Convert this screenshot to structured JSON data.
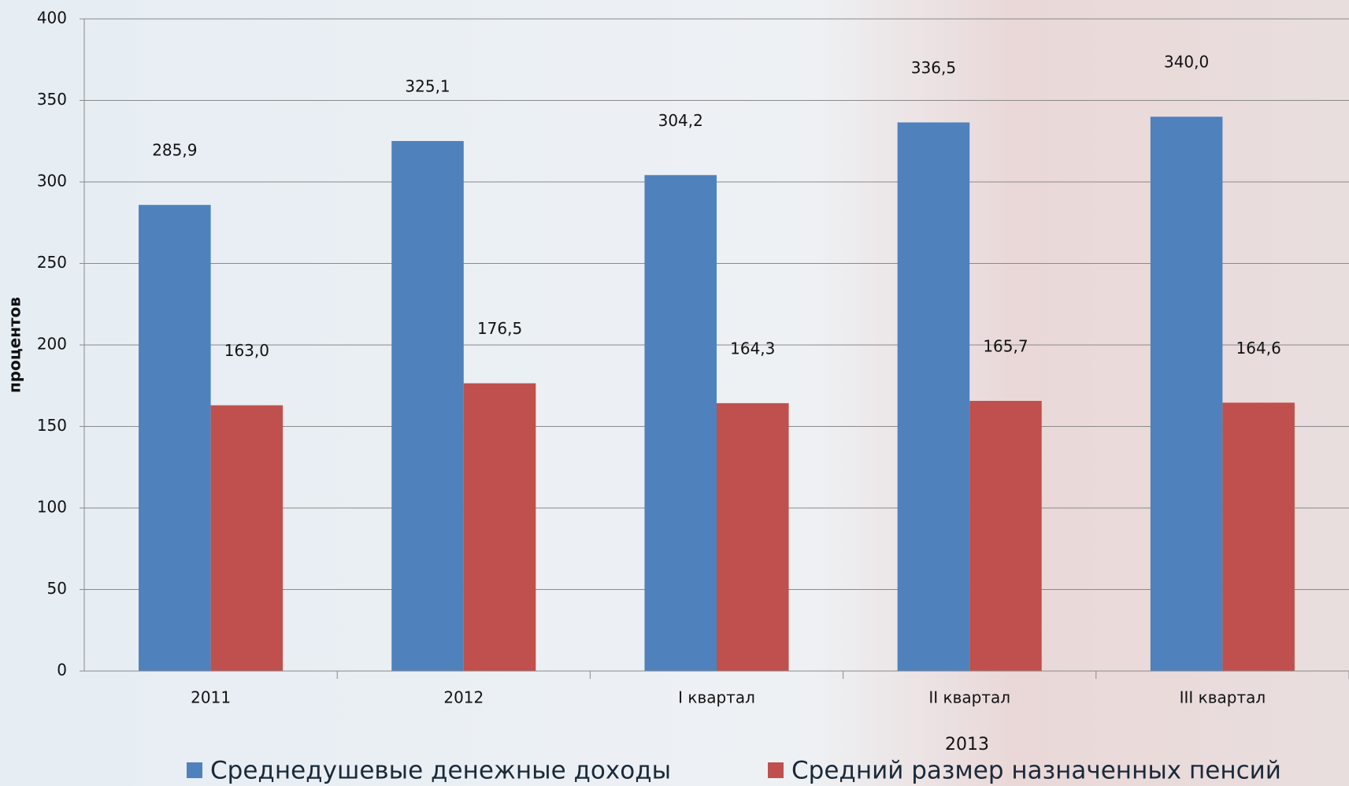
{
  "chart_data": {
    "type": "bar",
    "y_label": "процентов",
    "categories": [
      "2011",
      "2012",
      "I квартал",
      "II квартал",
      "III квартал"
    ],
    "x_group_label": "2013",
    "series": [
      {
        "name": "Среднедушевые денежные доходы",
        "color": "#4f81bd",
        "values": [
          285.9,
          325.1,
          304.2,
          336.5,
          340.0
        ],
        "value_labels": [
          "285,9",
          "325,1",
          "304,2",
          "336,5",
          "340,0"
        ]
      },
      {
        "name": "Средний размер назначенных пенсий",
        "color": "#c0504d",
        "values": [
          163.0,
          176.5,
          164.3,
          165.7,
          164.6
        ],
        "value_labels": [
          "163,0",
          "176,5",
          "164,3",
          "165,7",
          "164,6"
        ]
      }
    ],
    "ylim": [
      0,
      400
    ],
    "yticks": [
      0,
      50,
      100,
      150,
      200,
      250,
      300,
      350,
      400
    ],
    "grid": true
  }
}
